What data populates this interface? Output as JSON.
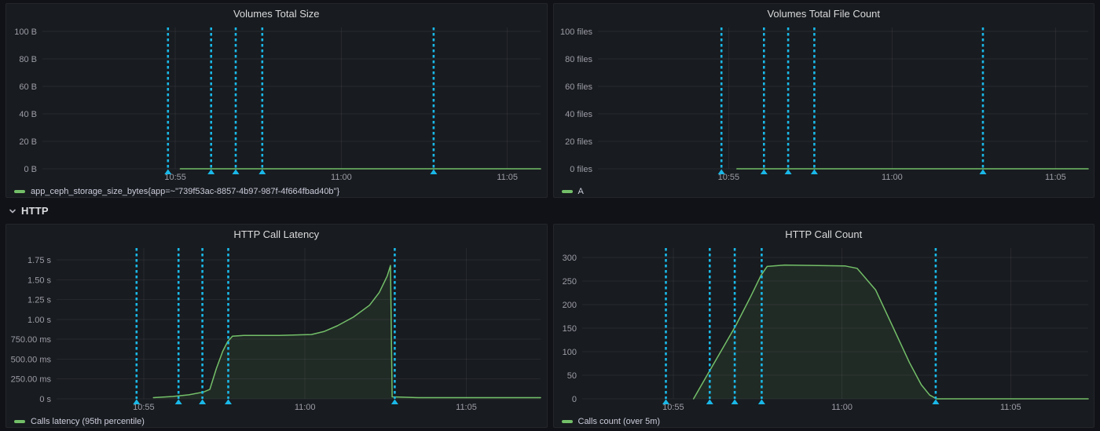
{
  "row_header": {
    "label": "HTTP"
  },
  "colors": {
    "page_bg": "#111217",
    "panel_bg": "#181b1f",
    "series_green": "#73bf69",
    "series_fill": "rgba(115,191,105,0.10)",
    "annotation_cyan": "#1ab8e8",
    "title_text": "#d8d9da",
    "axis_text": "#9d9da8"
  },
  "chart_data": [
    {
      "type": "line",
      "title": "Volumes Total Size",
      "legend": "app_ceph_storage_size_bytes{app=~\"739f53ac-8857-4b97-987f-4f664fbad40b\"}",
      "x_unit": "minutes_after_10:50",
      "x_range": [
        1,
        16
      ],
      "x_ticks": [
        [
          5,
          "10:55"
        ],
        [
          10,
          "11:00"
        ],
        [
          15,
          "11:05"
        ]
      ],
      "y_range": [
        0,
        103
      ],
      "y_ticks": [
        [
          0,
          "0 B"
        ],
        [
          20,
          "20 B"
        ],
        [
          40,
          "40 B"
        ],
        [
          60,
          "60 B"
        ],
        [
          80,
          "80 B"
        ],
        [
          100,
          "100 B"
        ]
      ],
      "series": [
        {
          "name": "app_ceph_storage_size_bytes{app=~\"739f53ac-8857-4b97-987f-4f664fbad40b\"}",
          "points": [
            [
              5.15,
              0
            ],
            [
              16,
              0
            ]
          ]
        }
      ],
      "annotations_x": [
        4.78,
        6.08,
        6.82,
        7.62,
        12.78
      ]
    },
    {
      "type": "line",
      "title": "Volumes Total File Count",
      "legend": "A",
      "x_unit": "minutes_after_10:50",
      "x_range": [
        1,
        16
      ],
      "x_ticks": [
        [
          5,
          "10:55"
        ],
        [
          10,
          "11:00"
        ],
        [
          15,
          "11:05"
        ]
      ],
      "y_range": [
        0,
        103
      ],
      "y_ticks": [
        [
          0,
          "0 files"
        ],
        [
          20,
          "20 files"
        ],
        [
          40,
          "40 files"
        ],
        [
          60,
          "60 files"
        ],
        [
          80,
          "80 files"
        ],
        [
          100,
          "100 files"
        ]
      ],
      "series": [
        {
          "name": "A",
          "points": [
            [
              5.25,
              0
            ],
            [
              16,
              0
            ]
          ]
        }
      ],
      "annotations_x": [
        4.78,
        6.08,
        6.82,
        7.62,
        12.78
      ]
    },
    {
      "type": "line",
      "title": "HTTP Call Latency",
      "legend": "Calls latency (95th percentile)",
      "x_unit": "minutes_after_10:50",
      "x_range": [
        2.3,
        17.3
      ],
      "x_ticks": [
        [
          5,
          "10:55"
        ],
        [
          10,
          "11:00"
        ],
        [
          15,
          "11:05"
        ]
      ],
      "y_range": [
        0,
        1.9
      ],
      "y_ticks": [
        [
          0,
          "0 s"
        ],
        [
          0.25,
          "250.00 ms"
        ],
        [
          0.5,
          "500.00 ms"
        ],
        [
          0.75,
          "750.00 ms"
        ],
        [
          1,
          "1.00 s"
        ],
        [
          1.25,
          "1.25 s"
        ],
        [
          1.5,
          "1.50 s"
        ],
        [
          1.75,
          "1.75 s"
        ]
      ],
      "series": [
        {
          "name": "Calls latency (95th percentile)",
          "points": [
            [
              5.3,
              0.015
            ],
            [
              5.9,
              0.03
            ],
            [
              6.4,
              0.05
            ],
            [
              6.85,
              0.085
            ],
            [
              7.05,
              0.12
            ],
            [
              7.25,
              0.38
            ],
            [
              7.45,
              0.6
            ],
            [
              7.6,
              0.72
            ],
            [
              7.75,
              0.79
            ],
            [
              8.1,
              0.8
            ],
            [
              9.2,
              0.8
            ],
            [
              10.2,
              0.81
            ],
            [
              10.6,
              0.85
            ],
            [
              11.0,
              0.92
            ],
            [
              11.5,
              1.03
            ],
            [
              12.0,
              1.18
            ],
            [
              12.3,
              1.34
            ],
            [
              12.55,
              1.55
            ],
            [
              12.65,
              1.68
            ],
            [
              12.7,
              0.025
            ],
            [
              13.5,
              0.015
            ],
            [
              17.3,
              0.015
            ]
          ]
        }
      ],
      "annotations_x": [
        4.78,
        6.08,
        6.82,
        7.62,
        12.78
      ]
    },
    {
      "type": "line",
      "title": "HTTP Call Count",
      "legend": "Calls count (over 5m)",
      "x_unit": "minutes_after_10:50",
      "x_range": [
        2.3,
        17.3
      ],
      "x_ticks": [
        [
          5,
          "10:55"
        ],
        [
          10,
          "11:00"
        ],
        [
          15,
          "11:05"
        ]
      ],
      "y_range": [
        0,
        320
      ],
      "y_ticks": [
        [
          0,
          "0"
        ],
        [
          50,
          "50"
        ],
        [
          100,
          "100"
        ],
        [
          150,
          "150"
        ],
        [
          200,
          "200"
        ],
        [
          250,
          "250"
        ],
        [
          300,
          "300"
        ]
      ],
      "series": [
        {
          "name": "Calls count (over 5m)",
          "points": [
            [
              5.6,
              0
            ],
            [
              6.1,
              62
            ],
            [
              6.85,
              155
            ],
            [
              7.3,
              218
            ],
            [
              7.6,
              262
            ],
            [
              7.78,
              281
            ],
            [
              8.3,
              284
            ],
            [
              9.3,
              283
            ],
            [
              10.1,
              282
            ],
            [
              10.45,
              277
            ],
            [
              11.0,
              231
            ],
            [
              11.5,
              154
            ],
            [
              12.0,
              77
            ],
            [
              12.35,
              30
            ],
            [
              12.6,
              8
            ],
            [
              12.8,
              0
            ],
            [
              17.3,
              0
            ]
          ]
        }
      ],
      "annotations_x": [
        4.78,
        6.08,
        6.82,
        7.62,
        12.78
      ]
    }
  ]
}
